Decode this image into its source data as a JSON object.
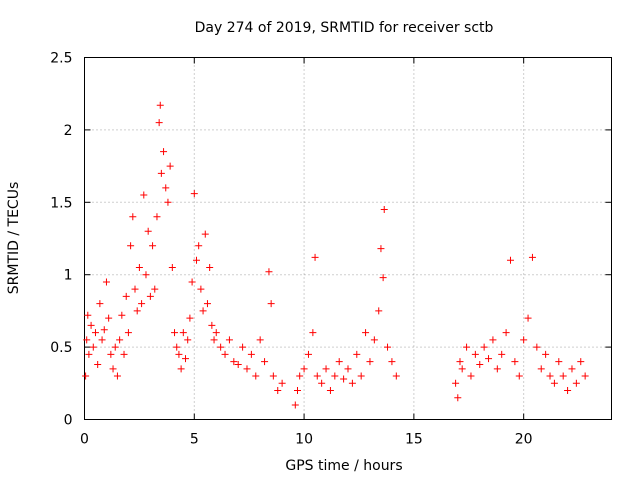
{
  "chart_data": {
    "type": "scatter",
    "title": "Day 274 of 2019, SRMTID for receiver sctb",
    "xlabel": "GPS time / hours",
    "ylabel": "SRMTID / TECUs",
    "xlim": [
      0,
      24
    ],
    "ylim": [
      0,
      2.5
    ],
    "x_ticks": [
      0,
      5,
      10,
      15,
      20
    ],
    "x_tick_labels": [
      "0",
      "5",
      "10",
      "15",
      "20"
    ],
    "y_ticks": [
      0,
      0.5,
      1,
      1.5,
      2,
      2.5
    ],
    "y_tick_labels": [
      "0",
      "0.5",
      "1",
      "1.5",
      "2",
      "2.5"
    ],
    "grid": true,
    "marker": "+",
    "color": "#ff0000",
    "series": [
      {
        "name": "SRMTID",
        "points": [
          [
            0.05,
            0.3
          ],
          [
            0.1,
            0.55
          ],
          [
            0.15,
            0.72
          ],
          [
            0.2,
            0.45
          ],
          [
            0.3,
            0.65
          ],
          [
            0.4,
            0.5
          ],
          [
            0.5,
            0.6
          ],
          [
            0.6,
            0.38
          ],
          [
            0.7,
            0.8
          ],
          [
            0.8,
            0.55
          ],
          [
            0.9,
            0.62
          ],
          [
            1.0,
            0.95
          ],
          [
            1.1,
            0.7
          ],
          [
            1.2,
            0.45
          ],
          [
            1.3,
            0.35
          ],
          [
            1.4,
            0.5
          ],
          [
            1.5,
            0.3
          ],
          [
            1.6,
            0.55
          ],
          [
            1.7,
            0.72
          ],
          [
            1.8,
            0.45
          ],
          [
            1.9,
            0.85
          ],
          [
            2.0,
            0.6
          ],
          [
            2.1,
            1.2
          ],
          [
            2.2,
            1.4
          ],
          [
            2.3,
            0.9
          ],
          [
            2.4,
            0.75
          ],
          [
            2.5,
            1.05
          ],
          [
            2.6,
            0.8
          ],
          [
            2.7,
            1.55
          ],
          [
            2.8,
            1.0
          ],
          [
            2.9,
            1.3
          ],
          [
            3.0,
            0.85
          ],
          [
            3.1,
            1.2
          ],
          [
            3.2,
            0.9
          ],
          [
            3.3,
            1.4
          ],
          [
            3.4,
            2.05
          ],
          [
            3.45,
            2.17
          ],
          [
            3.5,
            1.7
          ],
          [
            3.6,
            1.85
          ],
          [
            3.7,
            1.6
          ],
          [
            3.8,
            1.5
          ],
          [
            3.9,
            1.75
          ],
          [
            4.0,
            1.05
          ],
          [
            4.1,
            0.6
          ],
          [
            4.2,
            0.5
          ],
          [
            4.3,
            0.45
          ],
          [
            4.4,
            0.35
          ],
          [
            4.5,
            0.6
          ],
          [
            4.6,
            0.42
          ],
          [
            4.7,
            0.55
          ],
          [
            4.8,
            0.7
          ],
          [
            4.9,
            0.95
          ],
          [
            5.0,
            1.56
          ],
          [
            5.1,
            1.1
          ],
          [
            5.2,
            1.2
          ],
          [
            5.3,
            0.9
          ],
          [
            5.4,
            0.75
          ],
          [
            5.5,
            1.28
          ],
          [
            5.6,
            0.8
          ],
          [
            5.7,
            1.05
          ],
          [
            5.8,
            0.65
          ],
          [
            5.9,
            0.55
          ],
          [
            6.0,
            0.6
          ],
          [
            6.2,
            0.5
          ],
          [
            6.4,
            0.45
          ],
          [
            6.6,
            0.55
          ],
          [
            6.8,
            0.4
          ],
          [
            7.0,
            0.38
          ],
          [
            7.2,
            0.5
          ],
          [
            7.4,
            0.35
          ],
          [
            7.6,
            0.45
          ],
          [
            7.8,
            0.3
          ],
          [
            8.0,
            0.55
          ],
          [
            8.2,
            0.4
          ],
          [
            8.4,
            1.02
          ],
          [
            8.5,
            0.8
          ],
          [
            8.6,
            0.3
          ],
          [
            8.8,
            0.2
          ],
          [
            9.0,
            0.25
          ],
          [
            9.6,
            0.1
          ],
          [
            9.7,
            0.2
          ],
          [
            9.8,
            0.3
          ],
          [
            10.0,
            0.35
          ],
          [
            10.2,
            0.45
          ],
          [
            10.4,
            0.6
          ],
          [
            10.5,
            1.12
          ],
          [
            10.6,
            0.3
          ],
          [
            10.8,
            0.25
          ],
          [
            11.0,
            0.35
          ],
          [
            11.2,
            0.2
          ],
          [
            11.4,
            0.3
          ],
          [
            11.6,
            0.4
          ],
          [
            11.8,
            0.28
          ],
          [
            12.0,
            0.35
          ],
          [
            12.2,
            0.25
          ],
          [
            12.4,
            0.45
          ],
          [
            12.6,
            0.3
          ],
          [
            12.8,
            0.6
          ],
          [
            13.0,
            0.4
          ],
          [
            13.2,
            0.55
          ],
          [
            13.4,
            0.75
          ],
          [
            13.5,
            1.18
          ],
          [
            13.6,
            0.98
          ],
          [
            13.65,
            1.45
          ],
          [
            13.8,
            0.5
          ],
          [
            14.0,
            0.4
          ],
          [
            14.2,
            0.3
          ],
          [
            16.9,
            0.25
          ],
          [
            17.0,
            0.15
          ],
          [
            17.1,
            0.4
          ],
          [
            17.2,
            0.35
          ],
          [
            17.4,
            0.5
          ],
          [
            17.6,
            0.3
          ],
          [
            17.8,
            0.45
          ],
          [
            18.0,
            0.38
          ],
          [
            18.2,
            0.5
          ],
          [
            18.4,
            0.42
          ],
          [
            18.6,
            0.55
          ],
          [
            18.8,
            0.35
          ],
          [
            19.0,
            0.45
          ],
          [
            19.2,
            0.6
          ],
          [
            19.4,
            1.1
          ],
          [
            19.6,
            0.4
          ],
          [
            19.8,
            0.3
          ],
          [
            20.0,
            0.55
          ],
          [
            20.2,
            0.7
          ],
          [
            20.4,
            1.12
          ],
          [
            20.6,
            0.5
          ],
          [
            20.8,
            0.35
          ],
          [
            21.0,
            0.45
          ],
          [
            21.2,
            0.3
          ],
          [
            21.4,
            0.25
          ],
          [
            21.6,
            0.4
          ],
          [
            21.8,
            0.3
          ],
          [
            22.0,
            0.2
          ],
          [
            22.2,
            0.35
          ],
          [
            22.4,
            0.25
          ],
          [
            22.6,
            0.4
          ],
          [
            22.8,
            0.3
          ]
        ]
      }
    ]
  }
}
